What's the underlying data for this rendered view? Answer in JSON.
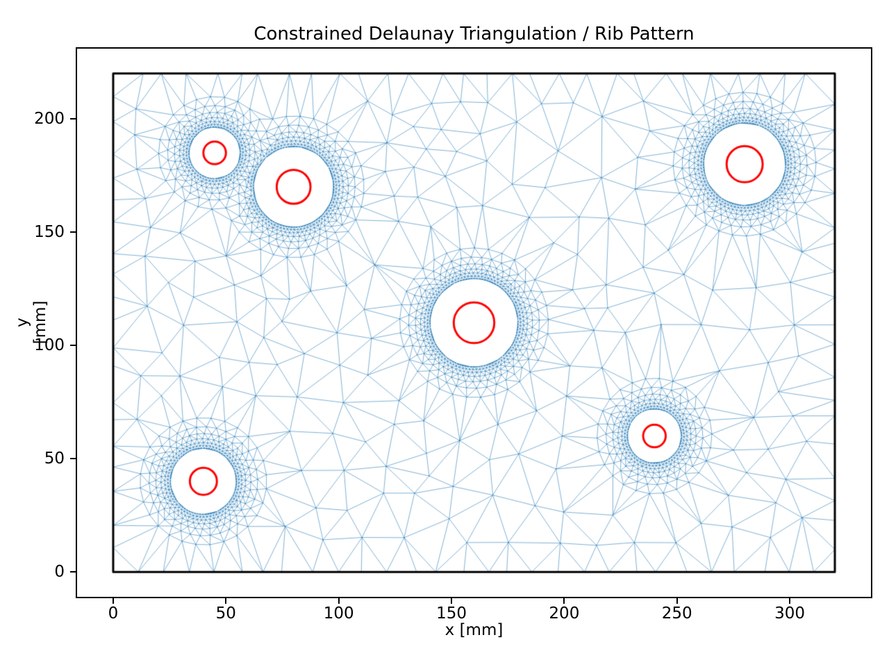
{
  "chart_data": {
    "type": "scatter",
    "subtype": "constrained-delaunay-triangulation-mesh",
    "title": "Constrained Delaunay Triangulation / Rib Pattern",
    "xlabel": "x [mm]",
    "ylabel": "y [mm]",
    "xlim": [
      -16,
      336
    ],
    "ylim": [
      -11,
      231
    ],
    "x_ticks": [
      0,
      50,
      100,
      150,
      200,
      250,
      300
    ],
    "y_ticks": [
      0,
      50,
      100,
      150,
      200
    ],
    "grid": false,
    "legend": null,
    "plate_outline": {
      "x0": 0,
      "y0": 0,
      "x1": 320,
      "y1": 220,
      "color": "#000000",
      "line_width": 3
    },
    "holes": [
      {
        "cx": 45,
        "cy": 185,
        "hole_radius": 5,
        "refined_radius": 11.4
      },
      {
        "cx": 80,
        "cy": 170,
        "hole_radius": 7.5,
        "refined_radius": 17.8
      },
      {
        "cx": 160,
        "cy": 110,
        "hole_radius": 9,
        "refined_radius": 19.5
      },
      {
        "cx": 280,
        "cy": 180,
        "hole_radius": 8,
        "refined_radius": 18.2
      },
      {
        "cx": 40,
        "cy": 40,
        "hole_radius": 6,
        "refined_radius": 14.6
      },
      {
        "cx": 240,
        "cy": 60,
        "hole_radius": 5,
        "refined_radius": 12.0
      }
    ],
    "hole_circle_color": "#ff0000",
    "hole_circle_line_width": 3,
    "mesh_color": "#1f77b4",
    "mesh_opacity": 0.8,
    "mesh_line_width": 0.72,
    "seed": 11
  }
}
